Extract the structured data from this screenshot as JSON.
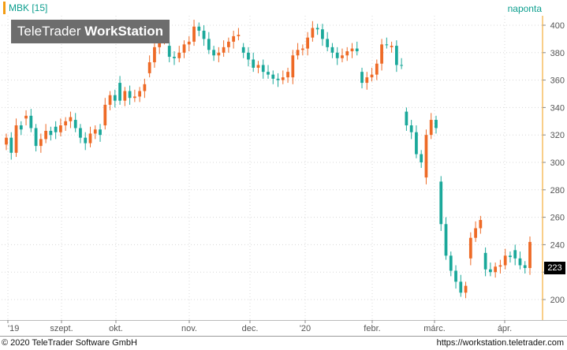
{
  "header": {
    "symbol": "MBK [15]",
    "interval": "naponta"
  },
  "logo": {
    "part1": "TeleTrader ",
    "part2": "WorkStation"
  },
  "footer": {
    "copyright": "© 2020 TeleTrader Software GmbH",
    "url": "https://workstation.teletrader.com"
  },
  "colors": {
    "up": "#1aa89a",
    "down": "#ee6a26",
    "grid": "#d8d8d8",
    "text": "#555555"
  },
  "chart_data": {
    "type": "candlestick",
    "symbol": "MBK [15]",
    "interval": "naponta",
    "ylim": [
      185,
      405
    ],
    "y_ticks": [
      200,
      220,
      240,
      260,
      280,
      300,
      320,
      340,
      360,
      380,
      400
    ],
    "y_tick_labels": [
      "200",
      "",
      "240",
      "260",
      "280",
      "300",
      "320",
      "340",
      "360",
      "380",
      "400"
    ],
    "x_tick_labels": [
      "'19",
      "szept.",
      "okt.",
      "nov.",
      "dec.",
      "'20",
      "febr.",
      "márc.",
      "ápr."
    ],
    "last_price": "223",
    "close": [
      313,
      318,
      307,
      327,
      332,
      334,
      325,
      312,
      317,
      323,
      326,
      322,
      327,
      330,
      331,
      325,
      318,
      314,
      321,
      324,
      327,
      342,
      349,
      358,
      345,
      352,
      347,
      348,
      352,
      365,
      373,
      384,
      389,
      385,
      377,
      376,
      380,
      386,
      388,
      399,
      396,
      390,
      382,
      378,
      380,
      384,
      388,
      392,
      384,
      380,
      375,
      369,
      371,
      366,
      364,
      361,
      360,
      362,
      362,
      378,
      382,
      383,
      391,
      398,
      397,
      390,
      384,
      380,
      376,
      378,
      381,
      383,
      366,
      358,
      362,
      364,
      372,
      386,
      384,
      385,
      371,
      337,
      327,
      322,
      306,
      289,
      320,
      331,
      286,
      255,
      232,
      221,
      213,
      205,
      230,
      245,
      252,
      234,
      222,
      220,
      224,
      225,
      232,
      236,
      230,
      225,
      223
    ],
    "open": [
      318,
      307,
      327,
      324,
      334,
      325,
      312,
      317,
      323,
      320,
      322,
      327,
      330,
      333,
      325,
      318,
      314,
      321,
      324,
      320,
      342,
      349,
      345,
      345,
      352,
      347,
      348,
      352,
      357,
      373,
      384,
      389,
      393,
      377,
      376,
      380,
      386,
      388,
      399,
      396,
      390,
      382,
      378,
      380,
      384,
      388,
      392,
      393,
      380,
      375,
      369,
      371,
      366,
      364,
      361,
      360,
      362,
      366,
      378,
      382,
      383,
      391,
      398,
      397,
      390,
      384,
      380,
      376,
      378,
      381,
      383,
      381,
      358,
      362,
      364,
      372,
      386,
      386,
      385,
      371,
      371,
      327,
      322,
      306,
      300,
      320,
      331,
      325,
      255,
      232,
      221,
      213,
      205,
      210,
      245,
      252,
      258,
      222,
      220,
      224,
      225,
      232,
      231,
      230,
      225,
      223,
      242
    ]
  }
}
